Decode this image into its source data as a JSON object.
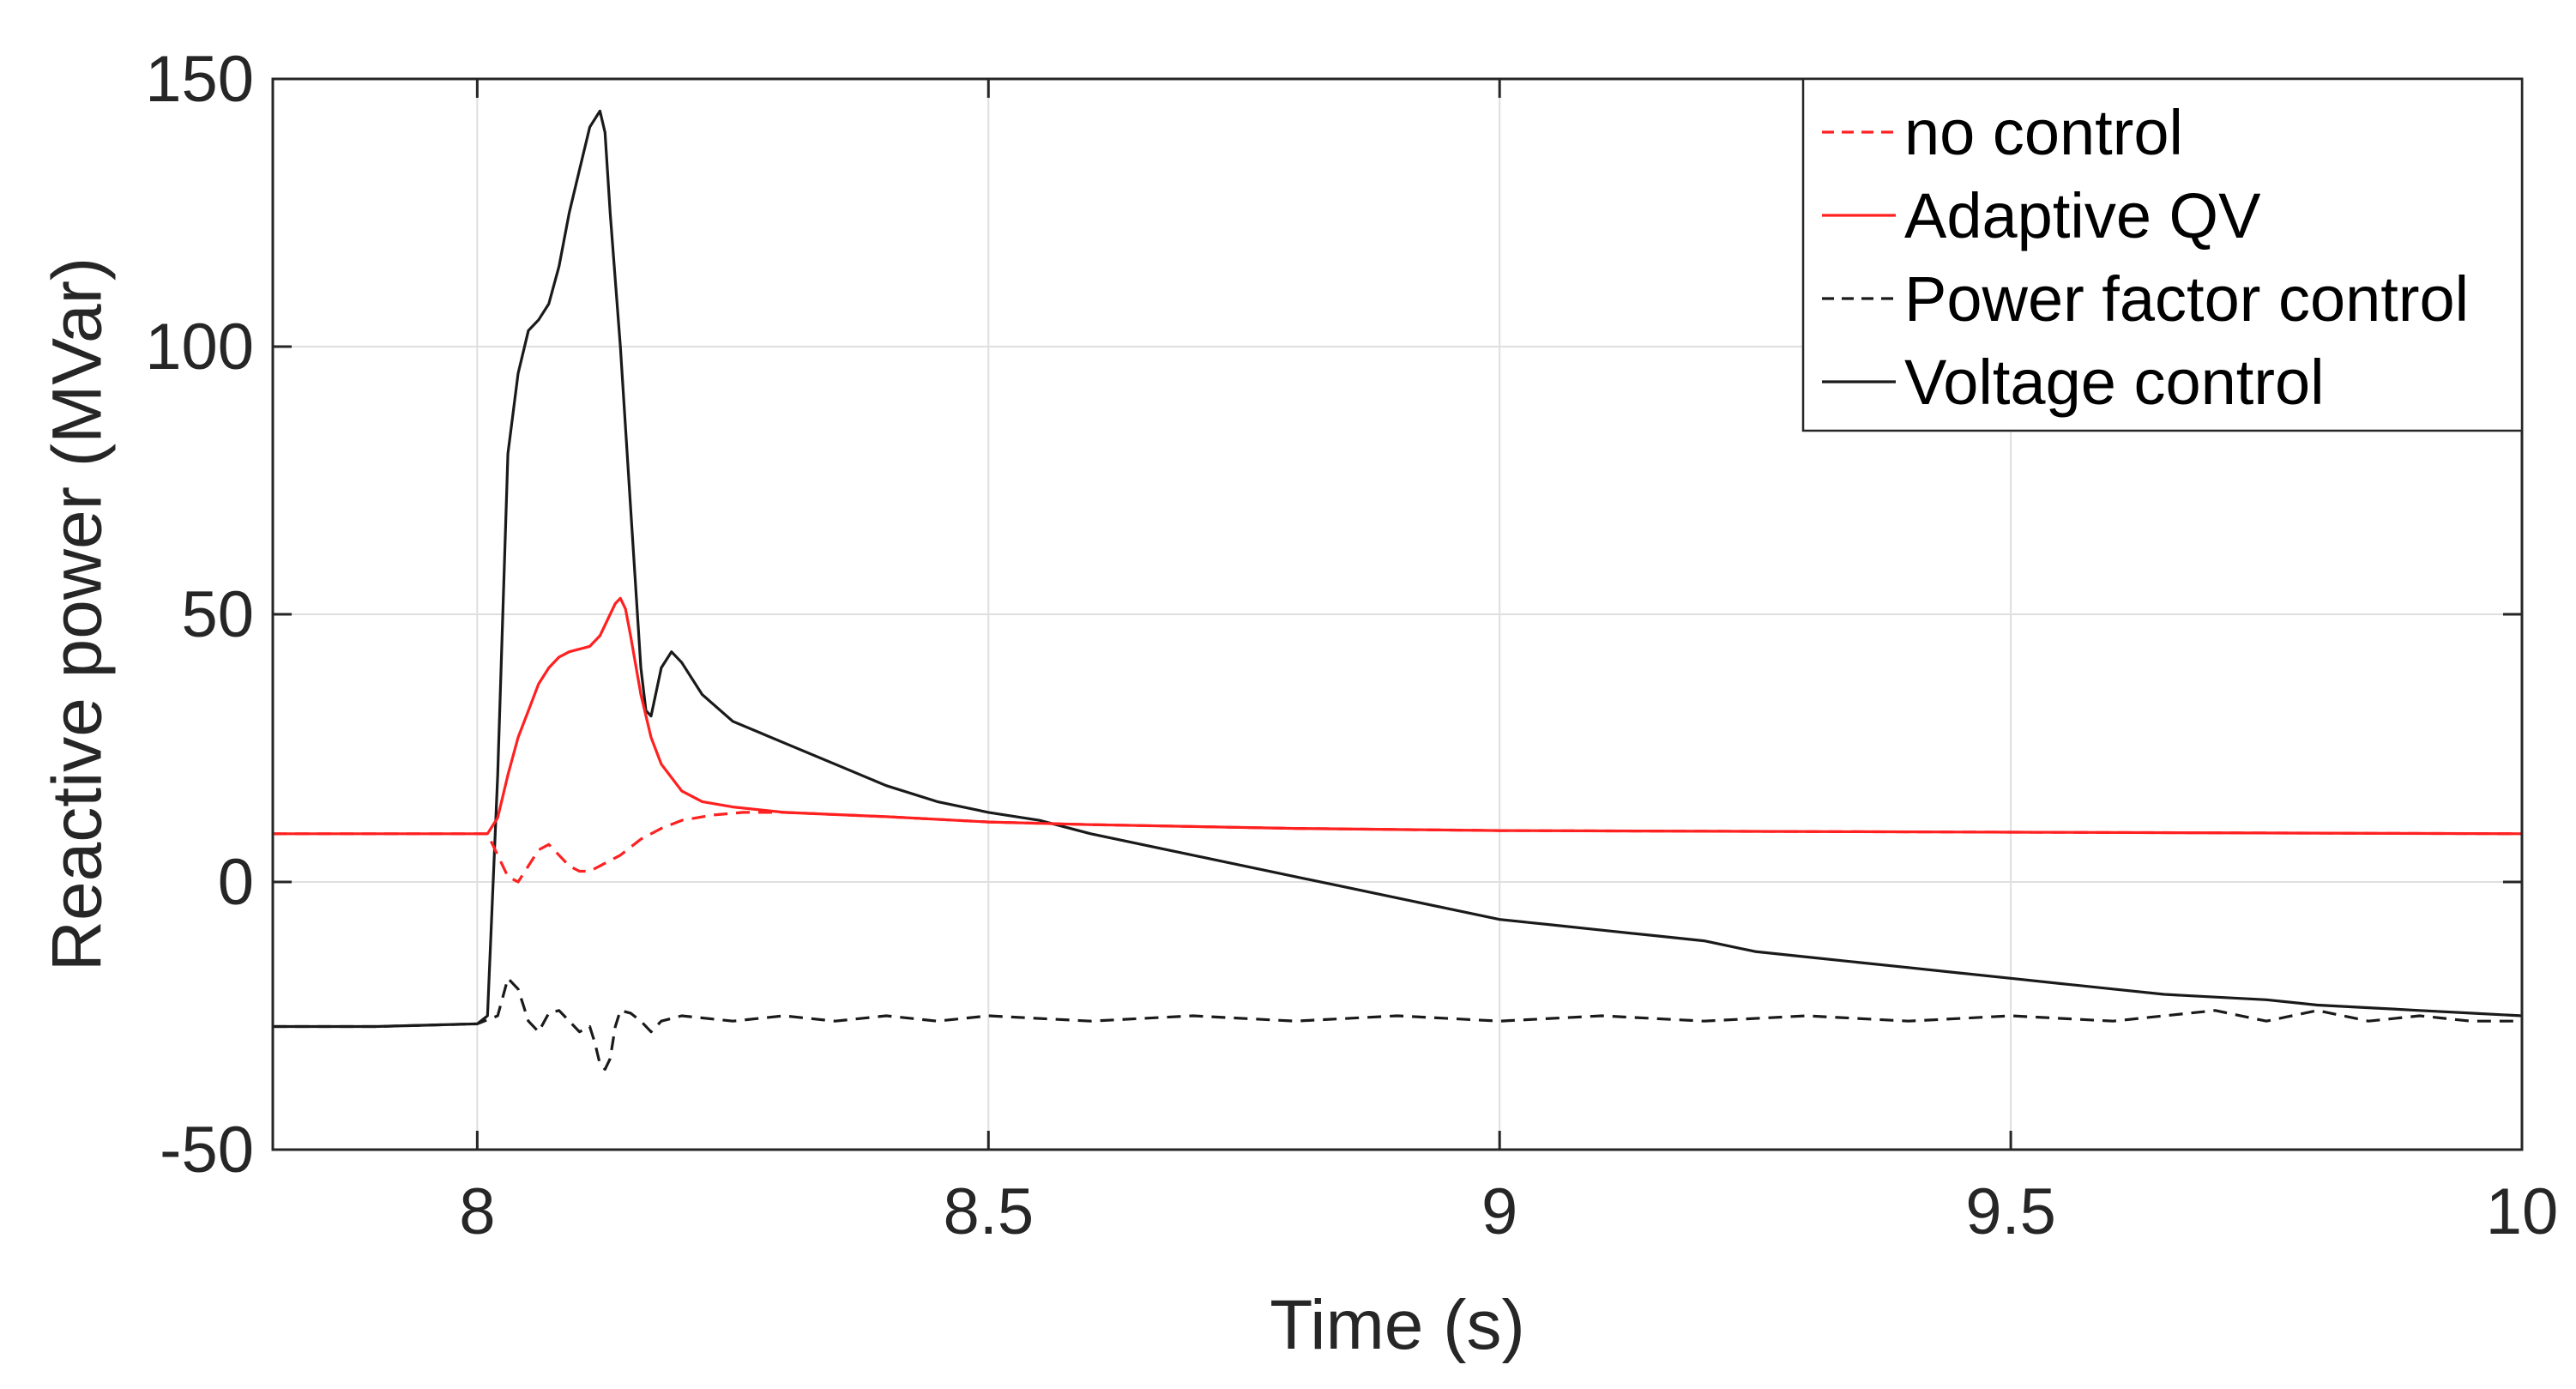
{
  "chart_data": {
    "type": "line",
    "title": "",
    "xlabel": "Time (s)",
    "ylabel": "Reactive power (MVar)",
    "xlim": [
      7.8,
      10
    ],
    "ylim": [
      -50,
      150
    ],
    "xticks": [
      8,
      8.5,
      9,
      9.5,
      10
    ],
    "yticks": [
      -50,
      0,
      50,
      100,
      150
    ],
    "x_tick_labels": [
      "8",
      "8.5",
      "9",
      "9.5",
      "10"
    ],
    "y_tick_labels": [
      "-50",
      "0",
      "50",
      "100",
      "150"
    ],
    "grid": true,
    "legend_position": "top-right",
    "series": [
      {
        "name": "no control",
        "color": "#ff2020",
        "dash": "dashed",
        "points": [
          [
            7.8,
            9
          ],
          [
            8.0,
            9
          ],
          [
            8.01,
            9
          ],
          [
            8.02,
            5
          ],
          [
            8.03,
            1
          ],
          [
            8.04,
            0
          ],
          [
            8.05,
            3
          ],
          [
            8.06,
            6
          ],
          [
            8.07,
            7
          ],
          [
            8.08,
            5
          ],
          [
            8.09,
            3
          ],
          [
            8.1,
            2
          ],
          [
            8.11,
            2
          ],
          [
            8.12,
            3
          ],
          [
            8.14,
            5
          ],
          [
            8.16,
            8
          ],
          [
            8.18,
            10
          ],
          [
            8.2,
            11.5
          ],
          [
            8.23,
            12.5
          ],
          [
            8.26,
            13
          ],
          [
            8.3,
            13
          ],
          [
            8.4,
            12.2
          ],
          [
            8.5,
            11.2
          ],
          [
            8.6,
            10.7
          ],
          [
            8.8,
            10
          ],
          [
            9.0,
            9.6
          ],
          [
            9.5,
            9.3
          ],
          [
            10.0,
            9
          ]
        ]
      },
      {
        "name": "Adaptive QV",
        "color": "#ff2020",
        "dash": "solid",
        "points": [
          [
            7.8,
            9
          ],
          [
            8.0,
            9
          ],
          [
            8.01,
            9
          ],
          [
            8.02,
            12
          ],
          [
            8.03,
            20
          ],
          [
            8.04,
            27
          ],
          [
            8.05,
            32
          ],
          [
            8.06,
            37
          ],
          [
            8.07,
            40
          ],
          [
            8.08,
            42
          ],
          [
            8.09,
            43
          ],
          [
            8.1,
            43.5
          ],
          [
            8.11,
            44
          ],
          [
            8.12,
            46
          ],
          [
            8.13,
            50
          ],
          [
            8.135,
            52
          ],
          [
            8.14,
            53
          ],
          [
            8.145,
            51
          ],
          [
            8.15,
            46
          ],
          [
            8.16,
            35
          ],
          [
            8.17,
            27
          ],
          [
            8.18,
            22
          ],
          [
            8.2,
            17
          ],
          [
            8.22,
            15
          ],
          [
            8.25,
            14
          ],
          [
            8.3,
            13
          ],
          [
            8.4,
            12.2
          ],
          [
            8.5,
            11.2
          ],
          [
            8.6,
            10.7
          ],
          [
            8.8,
            10
          ],
          [
            9.0,
            9.6
          ],
          [
            9.5,
            9.3
          ],
          [
            10.0,
            9
          ]
        ]
      },
      {
        "name": "Power factor control",
        "color": "#1a1a1a",
        "dash": "dashed",
        "points": [
          [
            7.8,
            -27
          ],
          [
            7.9,
            -27
          ],
          [
            8.0,
            -26.5
          ],
          [
            8.02,
            -25
          ],
          [
            8.03,
            -18
          ],
          [
            8.04,
            -20
          ],
          [
            8.05,
            -26
          ],
          [
            8.06,
            -28
          ],
          [
            8.07,
            -24.5
          ],
          [
            8.08,
            -24
          ],
          [
            8.09,
            -26
          ],
          [
            8.1,
            -28
          ],
          [
            8.11,
            -27
          ],
          [
            8.115,
            -30
          ],
          [
            8.12,
            -34
          ],
          [
            8.125,
            -35
          ],
          [
            8.13,
            -33
          ],
          [
            8.135,
            -27
          ],
          [
            8.14,
            -24
          ],
          [
            8.15,
            -24.5
          ],
          [
            8.16,
            -26
          ],
          [
            8.17,
            -28
          ],
          [
            8.18,
            -26
          ],
          [
            8.2,
            -25
          ],
          [
            8.25,
            -26
          ],
          [
            8.3,
            -25
          ],
          [
            8.35,
            -26
          ],
          [
            8.4,
            -25
          ],
          [
            8.45,
            -26
          ],
          [
            8.5,
            -25
          ],
          [
            8.6,
            -26
          ],
          [
            8.7,
            -25
          ],
          [
            8.8,
            -26
          ],
          [
            8.9,
            -25
          ],
          [
            9.0,
            -26
          ],
          [
            9.1,
            -25
          ],
          [
            9.2,
            -26
          ],
          [
            9.3,
            -25
          ],
          [
            9.4,
            -26
          ],
          [
            9.5,
            -25
          ],
          [
            9.6,
            -26
          ],
          [
            9.7,
            -24
          ],
          [
            9.75,
            -26
          ],
          [
            9.8,
            -24
          ],
          [
            9.85,
            -26
          ],
          [
            9.9,
            -25
          ],
          [
            9.95,
            -26
          ],
          [
            10.0,
            -26
          ]
        ]
      },
      {
        "name": "Voltage control",
        "color": "#1a1a1a",
        "dash": "solid",
        "points": [
          [
            7.8,
            -27
          ],
          [
            7.9,
            -27
          ],
          [
            8.0,
            -26.5
          ],
          [
            8.01,
            -25
          ],
          [
            8.02,
            20
          ],
          [
            8.03,
            80
          ],
          [
            8.04,
            95
          ],
          [
            8.05,
            103
          ],
          [
            8.06,
            105
          ],
          [
            8.07,
            108
          ],
          [
            8.08,
            115
          ],
          [
            8.09,
            125
          ],
          [
            8.1,
            133
          ],
          [
            8.11,
            141
          ],
          [
            8.12,
            144
          ],
          [
            8.125,
            140
          ],
          [
            8.13,
            125
          ],
          [
            8.14,
            100
          ],
          [
            8.15,
            70
          ],
          [
            8.16,
            40
          ],
          [
            8.165,
            32
          ],
          [
            8.17,
            31
          ],
          [
            8.18,
            40
          ],
          [
            8.19,
            43
          ],
          [
            8.2,
            41
          ],
          [
            8.22,
            35
          ],
          [
            8.25,
            30
          ],
          [
            8.3,
            26
          ],
          [
            8.35,
            22
          ],
          [
            8.4,
            18
          ],
          [
            8.45,
            15
          ],
          [
            8.5,
            13
          ],
          [
            8.55,
            11.5
          ],
          [
            8.6,
            9
          ],
          [
            8.65,
            7
          ],
          [
            8.7,
            5
          ],
          [
            8.75,
            3
          ],
          [
            8.8,
            1
          ],
          [
            8.85,
            -1
          ],
          [
            8.9,
            -3
          ],
          [
            8.95,
            -5
          ],
          [
            9.0,
            -7
          ],
          [
            9.05,
            -8
          ],
          [
            9.1,
            -9
          ],
          [
            9.15,
            -10
          ],
          [
            9.2,
            -11
          ],
          [
            9.25,
            -13
          ],
          [
            9.3,
            -14
          ],
          [
            9.35,
            -15
          ],
          [
            9.4,
            -16
          ],
          [
            9.45,
            -17
          ],
          [
            9.5,
            -18
          ],
          [
            9.55,
            -19
          ],
          [
            9.6,
            -20
          ],
          [
            9.65,
            -21
          ],
          [
            9.7,
            -21.5
          ],
          [
            9.75,
            -22
          ],
          [
            9.8,
            -23
          ],
          [
            9.85,
            -23.5
          ],
          [
            9.9,
            -24
          ],
          [
            9.95,
            -24.5
          ],
          [
            10.0,
            -25
          ]
        ]
      }
    ]
  }
}
